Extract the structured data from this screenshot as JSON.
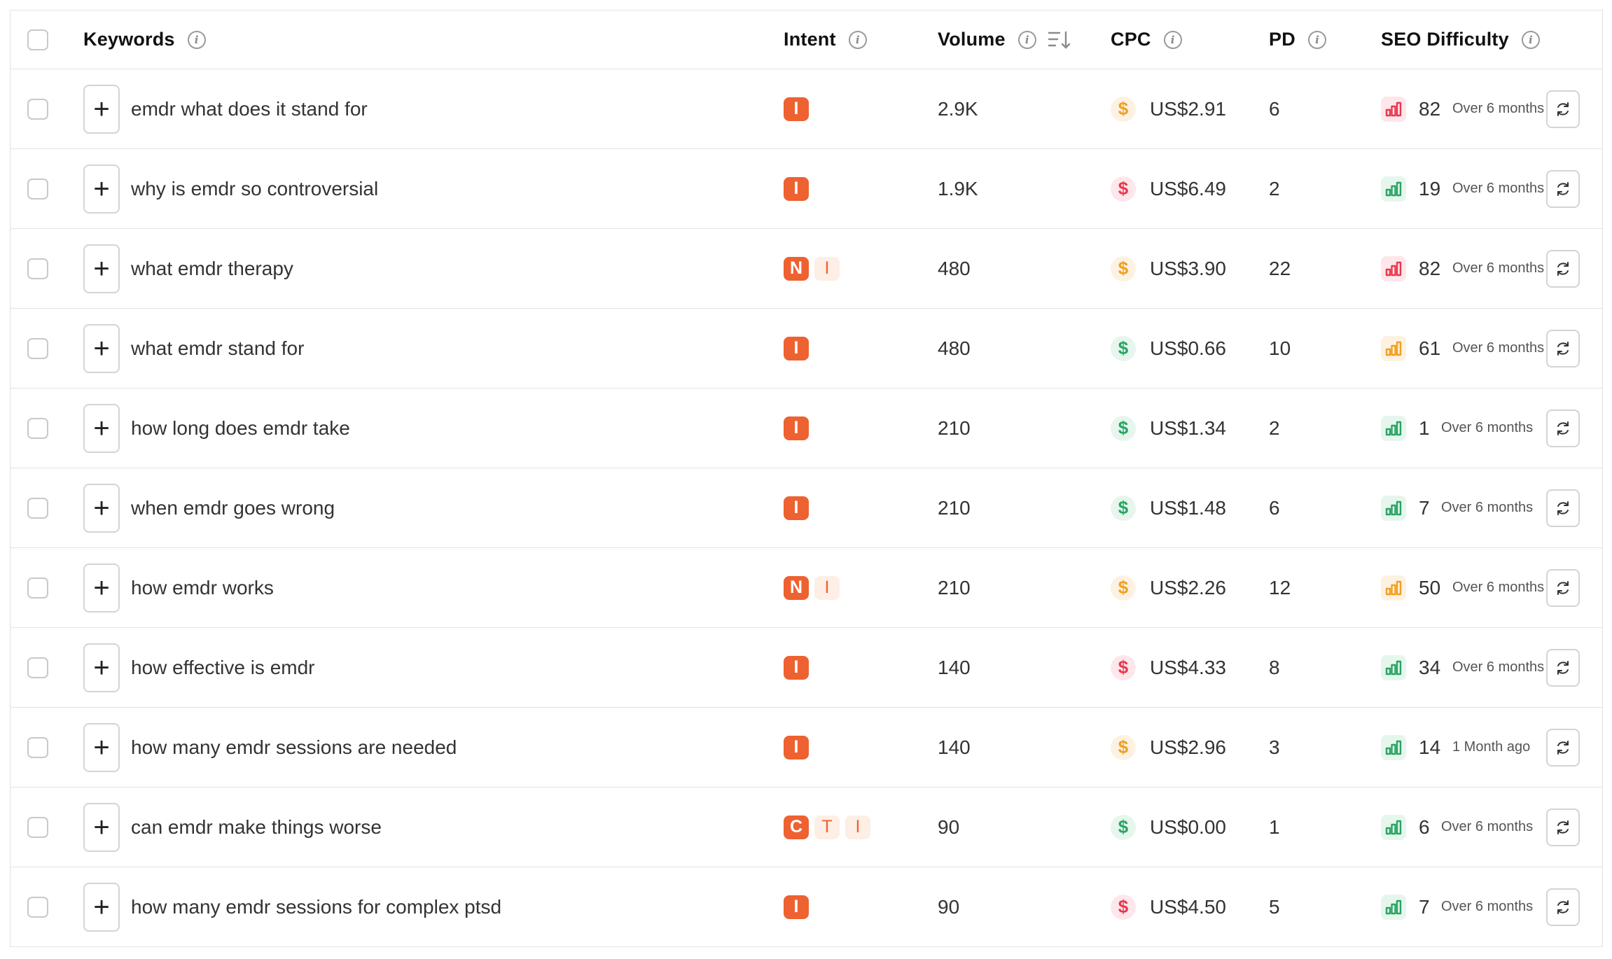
{
  "header": {
    "keywords": "Keywords",
    "intent": "Intent",
    "volume": "Volume",
    "cpc": "CPC",
    "pd": "PD",
    "seo": "SEO Difficulty"
  },
  "colors": {
    "intent_strong": "#ee6130",
    "intent_light": "#fdeee6",
    "green": "#2aa464",
    "orange": "#f0a020",
    "red": "#e8384f"
  },
  "rows": [
    {
      "keyword": "emdr what does it stand for",
      "intents": [
        {
          "letter": "I",
          "style": "strong"
        }
      ],
      "volume": "2.9K",
      "cpc": "US$2.91",
      "cpc_color": "orange",
      "pd": "6",
      "seo": "82",
      "seo_color": "red",
      "updated": "Over 6 months"
    },
    {
      "keyword": "why is emdr so controversial",
      "intents": [
        {
          "letter": "I",
          "style": "strong"
        }
      ],
      "volume": "1.9K",
      "cpc": "US$6.49",
      "cpc_color": "red",
      "pd": "2",
      "seo": "19",
      "seo_color": "green",
      "updated": "Over 6 months"
    },
    {
      "keyword": "what emdr therapy",
      "intents": [
        {
          "letter": "N",
          "style": "strong"
        },
        {
          "letter": "I",
          "style": "light"
        }
      ],
      "volume": "480",
      "cpc": "US$3.90",
      "cpc_color": "orange",
      "pd": "22",
      "seo": "82",
      "seo_color": "red",
      "updated": "Over 6 months"
    },
    {
      "keyword": "what emdr stand for",
      "intents": [
        {
          "letter": "I",
          "style": "strong"
        }
      ],
      "volume": "480",
      "cpc": "US$0.66",
      "cpc_color": "green",
      "pd": "10",
      "seo": "61",
      "seo_color": "orange",
      "updated": "Over 6 months"
    },
    {
      "keyword": "how long does emdr take",
      "intents": [
        {
          "letter": "I",
          "style": "strong"
        }
      ],
      "volume": "210",
      "cpc": "US$1.34",
      "cpc_color": "green",
      "pd": "2",
      "seo": "1",
      "seo_color": "green",
      "updated": "Over 6 months"
    },
    {
      "keyword": "when emdr goes wrong",
      "intents": [
        {
          "letter": "I",
          "style": "strong"
        }
      ],
      "volume": "210",
      "cpc": "US$1.48",
      "cpc_color": "green",
      "pd": "6",
      "seo": "7",
      "seo_color": "green",
      "updated": "Over 6 months"
    },
    {
      "keyword": "how emdr works",
      "intents": [
        {
          "letter": "N",
          "style": "strong"
        },
        {
          "letter": "I",
          "style": "light"
        }
      ],
      "volume": "210",
      "cpc": "US$2.26",
      "cpc_color": "orange",
      "pd": "12",
      "seo": "50",
      "seo_color": "orange",
      "updated": "Over 6 months"
    },
    {
      "keyword": "how effective is emdr",
      "intents": [
        {
          "letter": "I",
          "style": "strong"
        }
      ],
      "volume": "140",
      "cpc": "US$4.33",
      "cpc_color": "red",
      "pd": "8",
      "seo": "34",
      "seo_color": "green",
      "updated": "Over 6 months"
    },
    {
      "keyword": "how many emdr sessions are needed",
      "intents": [
        {
          "letter": "I",
          "style": "strong"
        }
      ],
      "volume": "140",
      "cpc": "US$2.96",
      "cpc_color": "orange",
      "pd": "3",
      "seo": "14",
      "seo_color": "green",
      "updated": "1 Month ago"
    },
    {
      "keyword": "can emdr make things worse",
      "intents": [
        {
          "letter": "C",
          "style": "strong"
        },
        {
          "letter": "T",
          "style": "light"
        },
        {
          "letter": "I",
          "style": "light"
        }
      ],
      "volume": "90",
      "cpc": "US$0.00",
      "cpc_color": "green",
      "pd": "1",
      "seo": "6",
      "seo_color": "green",
      "updated": "Over 6 months"
    },
    {
      "keyword": "how many emdr sessions for complex ptsd",
      "intents": [
        {
          "letter": "I",
          "style": "strong"
        }
      ],
      "volume": "90",
      "cpc": "US$4.50",
      "cpc_color": "red",
      "pd": "5",
      "seo": "7",
      "seo_color": "green",
      "updated": "Over 6 months"
    }
  ]
}
